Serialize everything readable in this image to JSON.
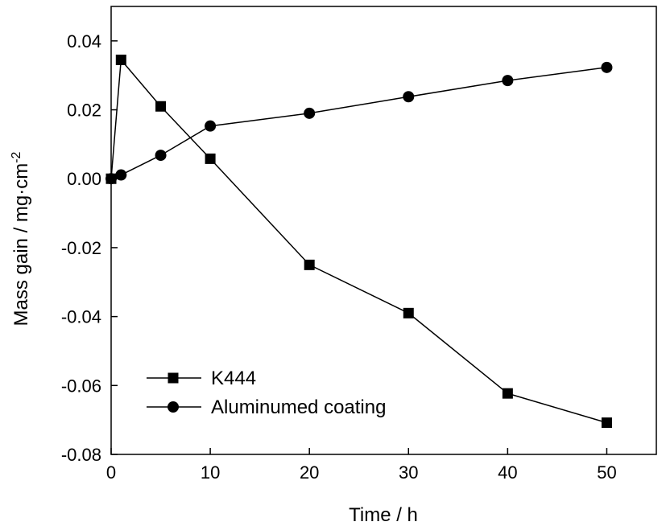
{
  "chart_data": {
    "type": "line",
    "xlabel": "Time / h",
    "ylabel": "Mass gain / mg·cm",
    "ylabel_superscript": "-2",
    "xlim": [
      0,
      55
    ],
    "ylim": [
      -0.08,
      0.05
    ],
    "xticks": [
      0,
      10,
      20,
      30,
      40,
      50
    ],
    "xtick_labels": [
      "0",
      "10",
      "20",
      "30",
      "40",
      "50"
    ],
    "yticks": [
      -0.08,
      -0.06,
      -0.04,
      -0.02,
      0.0,
      0.02,
      0.04
    ],
    "ytick_labels": [
      "-0.08",
      "-0.06",
      "-0.04",
      "-0.02",
      "0.00",
      "0.02",
      "0.04"
    ],
    "grid": false,
    "legend_position": "bottom-left",
    "series": [
      {
        "name": "K444",
        "marker": "square",
        "color": "#000000",
        "x": [
          0,
          1,
          5,
          10,
          20,
          30,
          40,
          50
        ],
        "y": [
          0.0,
          0.0345,
          0.021,
          0.0058,
          -0.025,
          -0.039,
          -0.0623,
          -0.0708
        ]
      },
      {
        "name": "Aluminumed coating",
        "marker": "circle",
        "color": "#000000",
        "x": [
          0,
          1,
          5,
          10,
          20,
          30,
          40,
          50
        ],
        "y": [
          0.0,
          0.0011,
          0.0068,
          0.0153,
          0.019,
          0.0238,
          0.0285,
          0.0323
        ]
      }
    ]
  }
}
